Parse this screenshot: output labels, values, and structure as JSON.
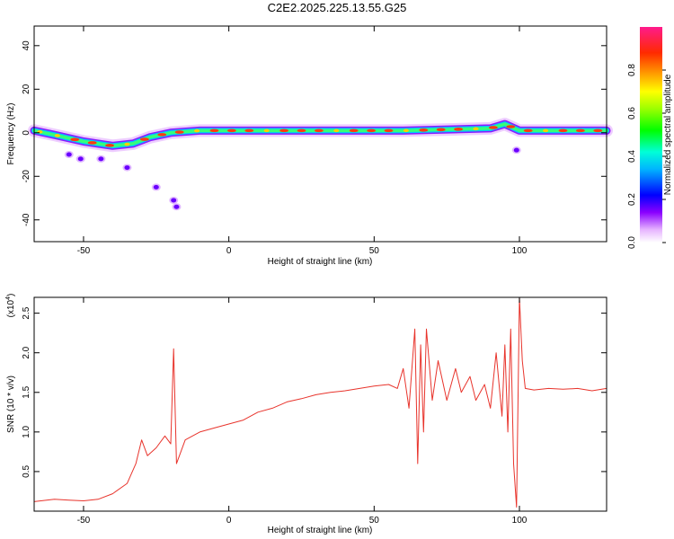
{
  "title": "C2E2.2025.225.13.55.G25",
  "chart_data": [
    {
      "type": "heatmap",
      "xlabel": "Height of straight line (km)",
      "ylabel": "Frequency (Hz)",
      "xlim": [
        -67,
        130
      ],
      "ylim": [
        -50,
        49
      ],
      "xticks": [
        -50,
        0,
        50,
        100
      ],
      "yticks": [
        -40,
        -20,
        0,
        20,
        40
      ],
      "colorbar": {
        "label": "Normalized spectral amplitude",
        "range": [
          0,
          1
        ],
        "ticks": [
          "0.0",
          "0.2",
          "0.4",
          "0.6",
          "0.8"
        ]
      },
      "ridge": [
        {
          "x": -67,
          "y": 1
        },
        {
          "x": -60,
          "y": -1
        },
        {
          "x": -50,
          "y": -4
        },
        {
          "x": -45,
          "y": -5
        },
        {
          "x": -40,
          "y": -6
        },
        {
          "x": -33,
          "y": -5
        },
        {
          "x": -27,
          "y": -2
        },
        {
          "x": -20,
          "y": 0
        },
        {
          "x": -10,
          "y": 1
        },
        {
          "x": 0,
          "y": 1
        },
        {
          "x": 30,
          "y": 1
        },
        {
          "x": 60,
          "y": 1
        },
        {
          "x": 90,
          "y": 2
        },
        {
          "x": 95,
          "y": 4
        },
        {
          "x": 100,
          "y": 1
        },
        {
          "x": 130,
          "y": 1
        }
      ],
      "blobs": [
        {
          "x": -55,
          "y": -10
        },
        {
          "x": -51,
          "y": -12
        },
        {
          "x": -44,
          "y": -12
        },
        {
          "x": -35,
          "y": -16
        },
        {
          "x": -25,
          "y": -25
        },
        {
          "x": -19,
          "y": -31
        },
        {
          "x": -18,
          "y": -34
        },
        {
          "x": 99,
          "y": -8
        }
      ]
    },
    {
      "type": "line",
      "xlabel": "Height of straight line (km)",
      "ylabel": "SNR (10 * v/v)",
      "yscale_note": "(x10",
      "yscale_exp": "4",
      "xlim": [
        -67,
        130
      ],
      "ylim": [
        0,
        2.7
      ],
      "xticks": [
        -50,
        0,
        50,
        100
      ],
      "yticks": [
        "0.5",
        "1.0",
        "1.5",
        "2.0",
        "2.5"
      ],
      "series": [
        {
          "color": "#e8342c",
          "x": [
            -67,
            -60,
            -55,
            -50,
            -45,
            -40,
            -35,
            -32,
            -30,
            -28,
            -25,
            -22,
            -20,
            -19,
            -18,
            -15,
            -10,
            -5,
            0,
            5,
            10,
            15,
            20,
            25,
            30,
            35,
            40,
            45,
            50,
            55,
            58,
            60,
            62,
            64,
            65,
            66,
            67,
            68,
            70,
            72,
            75,
            78,
            80,
            83,
            85,
            88,
            90,
            92,
            94,
            95,
            96,
            97,
            98,
            99,
            100,
            101,
            102,
            105,
            110,
            115,
            120,
            125,
            130
          ],
          "y": [
            0.12,
            0.15,
            0.14,
            0.13,
            0.15,
            0.22,
            0.35,
            0.6,
            0.9,
            0.7,
            0.8,
            0.95,
            0.85,
            2.05,
            0.6,
            0.9,
            1.0,
            1.05,
            1.1,
            1.15,
            1.25,
            1.3,
            1.38,
            1.42,
            1.47,
            1.5,
            1.52,
            1.55,
            1.58,
            1.6,
            1.55,
            1.8,
            1.3,
            2.3,
            0.6,
            2.1,
            1.0,
            2.3,
            1.4,
            1.9,
            1.4,
            1.8,
            1.5,
            1.7,
            1.4,
            1.6,
            1.3,
            2.0,
            1.2,
            2.1,
            1.0,
            2.3,
            0.6,
            0.05,
            2.7,
            1.9,
            1.55,
            1.53,
            1.55,
            1.54,
            1.55,
            1.52,
            1.55
          ]
        }
      ]
    }
  ]
}
